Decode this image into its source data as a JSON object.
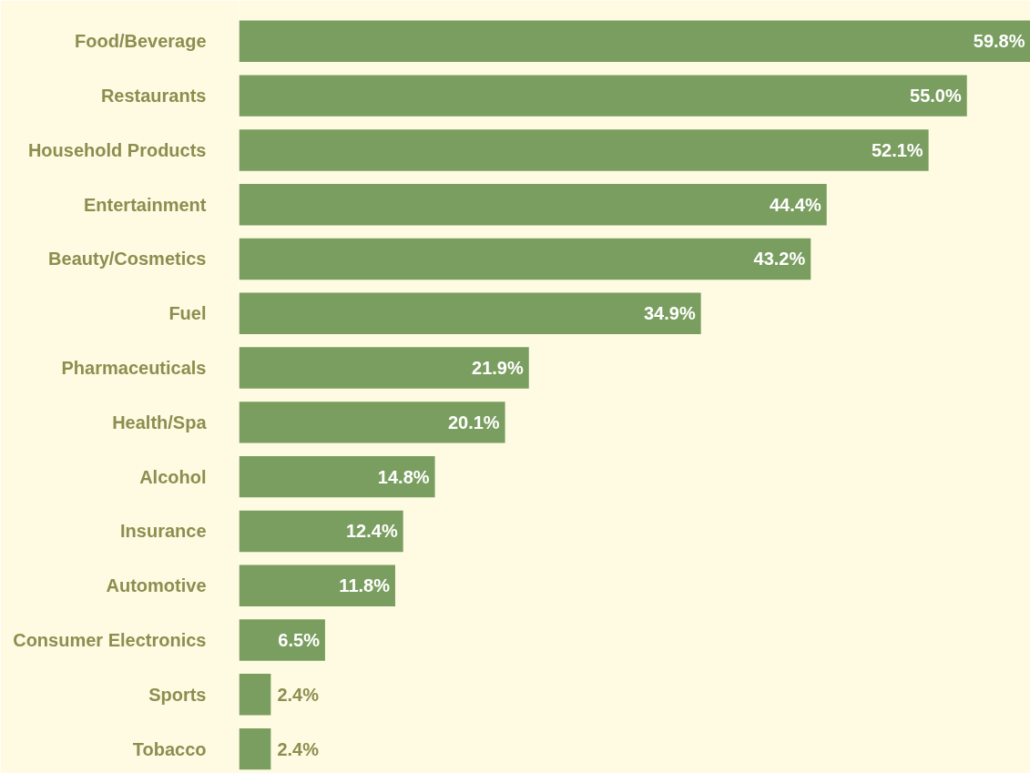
{
  "chart_data": {
    "type": "bar",
    "orientation": "horizontal",
    "categories": [
      "Food/Beverage",
      "Restaurants",
      "Household Products",
      "Entertainment",
      "Beauty/Cosmetics",
      "Fuel",
      "Pharmaceuticals",
      "Health/Spa",
      "Alcohol",
      "Insurance",
      "Automotive",
      "Consumer Electronics",
      "Sports",
      "Tobacco"
    ],
    "values": [
      59.8,
      55.0,
      52.1,
      44.4,
      43.2,
      34.9,
      21.9,
      20.1,
      14.8,
      12.4,
      11.8,
      6.5,
      2.4,
      2.4
    ],
    "value_labels": [
      "59.8%",
      "55.0%",
      "52.1%",
      "44.4%",
      "43.2%",
      "34.9%",
      "21.9%",
      "20.1%",
      "14.8%",
      "12.4%",
      "11.8%",
      "6.5%",
      "2.4%",
      "2.4%"
    ],
    "color": "#7a9e60"
  }
}
